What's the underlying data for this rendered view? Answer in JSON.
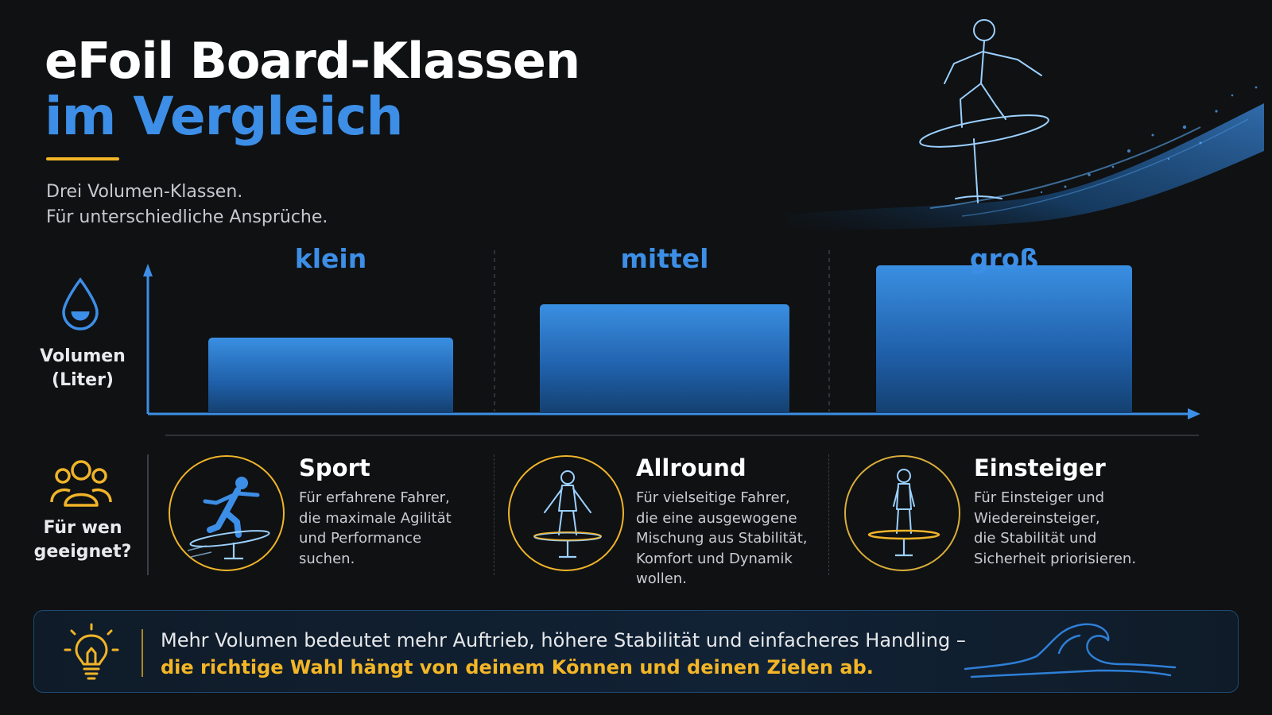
{
  "title": {
    "line1": "eFoil Board-Klassen",
    "line2": "im Vergleich"
  },
  "subtitle": {
    "line1": "Drei Volumen-Klassen.",
    "line2": "Für unterschiedliche Ansprüche."
  },
  "colors": {
    "accent_blue": "#3d8ee6",
    "accent_yellow": "#f4b626",
    "background": "#0f1113"
  },
  "chart_data": {
    "type": "bar",
    "y_axis_label_line1": "Volumen",
    "y_axis_label_line2": "(Liter)",
    "categories": [
      "klein",
      "mittel",
      "groß"
    ],
    "values": [
      0.5,
      0.72,
      0.98
    ],
    "grid": false,
    "value_unit": "relative volume (no scale printed)"
  },
  "suitability": {
    "label_line1": "Für wen",
    "label_line2": "geeignet?",
    "personas": [
      {
        "title": "Sport",
        "icon": "sport-rider-icon",
        "description_lines": [
          "Für erfahrene Fahrer,",
          "die maximale Agilität",
          "und Performance",
          "suchen."
        ]
      },
      {
        "title": "Allround",
        "icon": "allround-rider-icon",
        "description_lines": [
          "Für vielseitige Fahrer,",
          "die eine ausgewogene",
          "Mischung aus Stabilität,",
          "Komfort und Dynamik",
          "wollen."
        ]
      },
      {
        "title": "Einsteiger",
        "icon": "beginner-rider-icon",
        "description_lines": [
          "Für Einsteiger und",
          "Wiedereinsteiger,",
          "die Stabilität und",
          "Sicherheit priorisieren."
        ]
      }
    ]
  },
  "info": {
    "line1": "Mehr Volumen bedeutet mehr Auftrieb, höhere Stabilität und einfacheres Handling –",
    "line2": "die richtige Wahl hängt von deinem Können und deinen Zielen ab.",
    "icon": "lightbulb-icon",
    "decoration": "wave-icon"
  }
}
